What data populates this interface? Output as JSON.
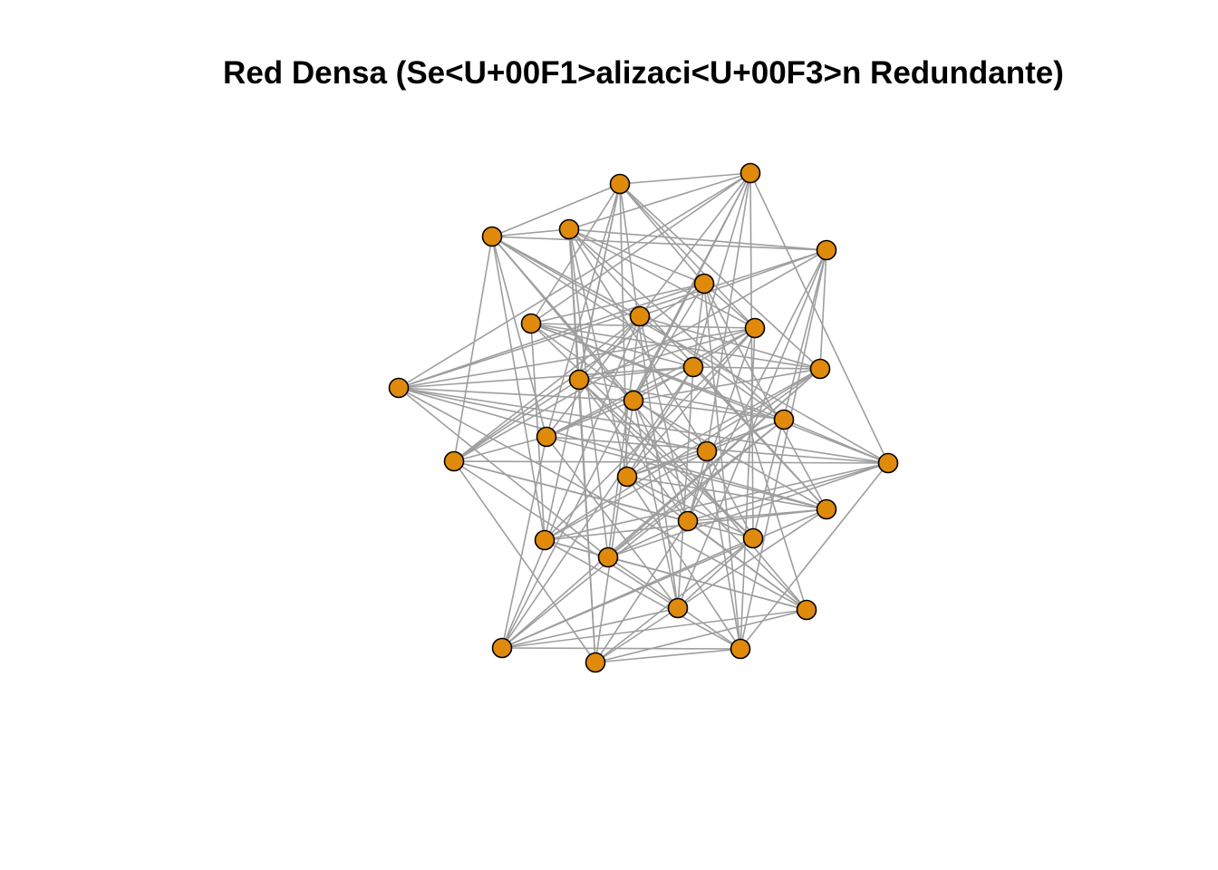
{
  "title": "Red Densa (Se<U+00F1>alizaci<U+00F3>n Redundante)",
  "colors": {
    "node_fill": "#E08A0B",
    "node_stroke": "#000000",
    "edge": "#9E9E9E",
    "background": "#FFFFFF"
  },
  "graph": {
    "nodes": [
      {
        "id": 1
      },
      {
        "id": 2
      },
      {
        "id": 3
      },
      {
        "id": 4
      },
      {
        "id": 5
      },
      {
        "id": 6
      },
      {
        "id": 7
      },
      {
        "id": 8
      },
      {
        "id": 9
      },
      {
        "id": 10
      },
      {
        "id": 11
      },
      {
        "id": 12
      },
      {
        "id": 13
      },
      {
        "id": 14
      },
      {
        "id": 15
      },
      {
        "id": 16
      },
      {
        "id": 17
      },
      {
        "id": 18
      },
      {
        "id": 19
      },
      {
        "id": 20
      },
      {
        "id": 21
      },
      {
        "id": 22
      },
      {
        "id": 23
      },
      {
        "id": 24
      },
      {
        "id": 25
      },
      {
        "id": 26
      },
      {
        "id": 27
      },
      {
        "id": 28
      },
      {
        "id": 29
      },
      {
        "id": 30
      }
    ],
    "edges": [
      [
        1,
        2
      ],
      [
        1,
        3
      ],
      [
        1,
        6
      ],
      [
        1,
        7
      ],
      [
        1,
        9
      ],
      [
        1,
        11
      ],
      [
        1,
        13
      ],
      [
        1,
        16
      ],
      [
        1,
        19
      ],
      [
        1,
        23
      ],
      [
        1,
        26
      ],
      [
        2,
        4
      ],
      [
        2,
        7
      ],
      [
        2,
        8
      ],
      [
        2,
        10
      ],
      [
        2,
        12
      ],
      [
        2,
        14
      ],
      [
        2,
        17
      ],
      [
        2,
        20
      ],
      [
        2,
        24
      ],
      [
        2,
        28
      ],
      [
        3,
        4
      ],
      [
        3,
        5
      ],
      [
        3,
        8
      ],
      [
        3,
        12
      ],
      [
        3,
        14
      ],
      [
        3,
        16
      ],
      [
        3,
        18
      ],
      [
        3,
        20
      ],
      [
        3,
        23
      ],
      [
        3,
        27
      ],
      [
        4,
        5
      ],
      [
        4,
        6
      ],
      [
        4,
        9
      ],
      [
        4,
        11
      ],
      [
        4,
        15
      ],
      [
        4,
        17
      ],
      [
        4,
        19
      ],
      [
        4,
        22
      ],
      [
        4,
        25
      ],
      [
        4,
        30
      ],
      [
        5,
        8
      ],
      [
        5,
        10
      ],
      [
        5,
        13
      ],
      [
        5,
        18
      ],
      [
        5,
        21
      ],
      [
        5,
        24
      ],
      [
        5,
        26
      ],
      [
        5,
        29
      ],
      [
        6,
        7
      ],
      [
        6,
        9
      ],
      [
        6,
        10
      ],
      [
        6,
        12
      ],
      [
        6,
        14
      ],
      [
        6,
        18
      ],
      [
        6,
        22
      ],
      [
        6,
        27
      ],
      [
        6,
        29
      ],
      [
        7,
        9
      ],
      [
        7,
        12
      ],
      [
        7,
        13
      ],
      [
        7,
        15
      ],
      [
        7,
        17
      ],
      [
        7,
        20
      ],
      [
        7,
        23
      ],
      [
        7,
        24
      ],
      [
        8,
        11
      ],
      [
        8,
        13
      ],
      [
        8,
        15
      ],
      [
        8,
        16
      ],
      [
        8,
        18
      ],
      [
        8,
        21
      ],
      [
        8,
        25
      ],
      [
        8,
        28
      ],
      [
        9,
        10
      ],
      [
        9,
        11
      ],
      [
        9,
        14
      ],
      [
        9,
        16
      ],
      [
        9,
        19
      ],
      [
        9,
        21
      ],
      [
        9,
        23
      ],
      [
        9,
        29
      ],
      [
        10,
        12
      ],
      [
        10,
        14
      ],
      [
        10,
        17
      ],
      [
        10,
        20
      ],
      [
        10,
        22
      ],
      [
        10,
        25
      ],
      [
        10,
        27
      ],
      [
        11,
        12
      ],
      [
        11,
        15
      ],
      [
        11,
        18
      ],
      [
        11,
        21
      ],
      [
        11,
        24
      ],
      [
        11,
        27
      ],
      [
        11,
        30
      ],
      [
        12,
        13
      ],
      [
        12,
        16
      ],
      [
        12,
        19
      ],
      [
        12,
        22
      ],
      [
        12,
        26
      ],
      [
        12,
        28
      ],
      [
        13,
        14
      ],
      [
        13,
        17
      ],
      [
        13,
        19
      ],
      [
        13,
        23
      ],
      [
        13,
        25
      ],
      [
        13,
        28
      ],
      [
        14,
        15
      ],
      [
        14,
        16
      ],
      [
        14,
        21
      ],
      [
        14,
        22
      ],
      [
        14,
        26
      ],
      [
        14,
        30
      ],
      [
        15,
        17
      ],
      [
        15,
        19
      ],
      [
        15,
        20
      ],
      [
        15,
        25
      ],
      [
        15,
        28
      ],
      [
        16,
        18
      ],
      [
        16,
        20
      ],
      [
        16,
        22
      ],
      [
        16,
        26
      ],
      [
        16,
        28
      ],
      [
        17,
        19
      ],
      [
        17,
        21
      ],
      [
        17,
        23
      ],
      [
        17,
        24
      ],
      [
        17,
        29
      ],
      [
        18,
        20
      ],
      [
        18,
        21
      ],
      [
        18,
        24
      ],
      [
        18,
        26
      ],
      [
        18,
        30
      ],
      [
        19,
        22
      ],
      [
        19,
        24
      ],
      [
        19,
        27
      ],
      [
        19,
        29
      ],
      [
        20,
        21
      ],
      [
        20,
        23
      ],
      [
        20,
        25
      ],
      [
        20,
        29
      ],
      [
        21,
        22
      ],
      [
        21,
        25
      ],
      [
        21,
        27
      ],
      [
        21,
        30
      ],
      [
        22,
        23
      ],
      [
        22,
        26
      ],
      [
        22,
        28
      ],
      [
        23,
        25
      ],
      [
        23,
        27
      ],
      [
        23,
        29
      ],
      [
        24,
        26
      ],
      [
        24,
        28
      ],
      [
        24,
        30
      ],
      [
        25,
        27
      ],
      [
        25,
        29
      ],
      [
        26,
        28
      ],
      [
        26,
        30
      ],
      [
        27,
        28
      ],
      [
        27,
        30
      ],
      [
        28,
        29
      ],
      [
        29,
        30
      ]
    ]
  }
}
